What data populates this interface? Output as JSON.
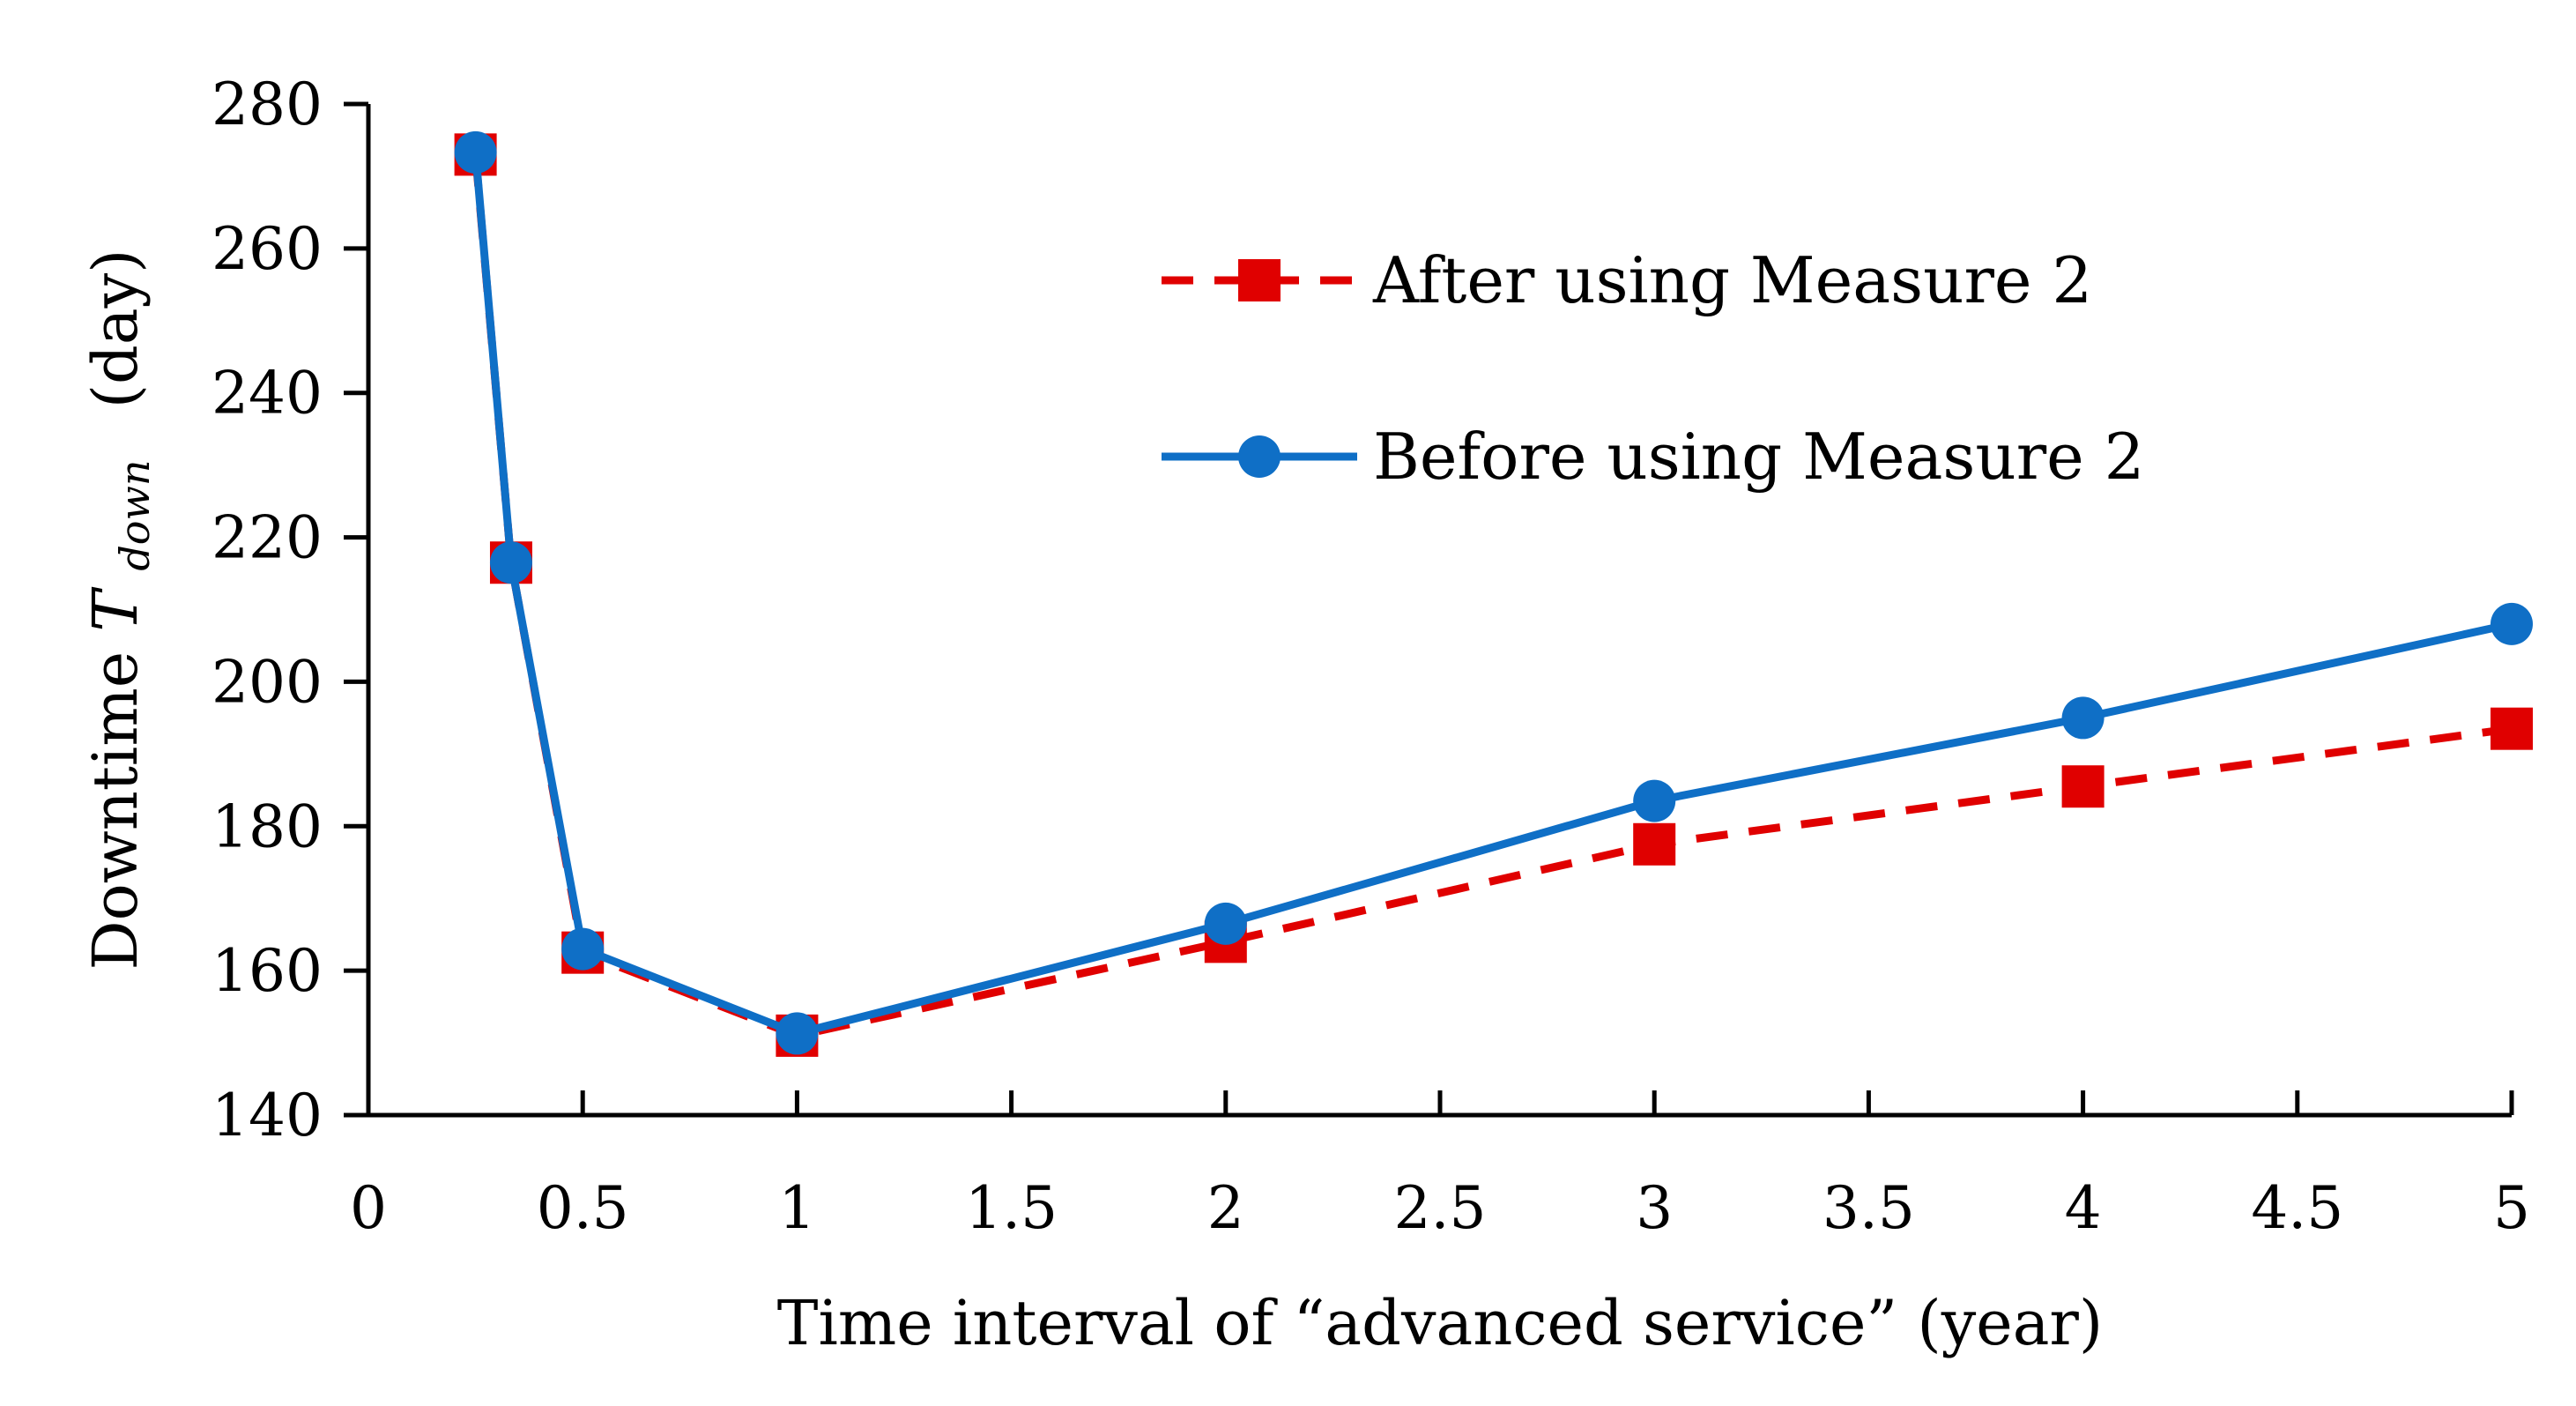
{
  "chart_data": {
    "type": "line",
    "title": "",
    "xlabel": "Time interval of “advanced service” (year)",
    "ylabel": {
      "prefix": "Downtime ",
      "symbol": "T",
      "subscript": "down",
      "unit": "(day)"
    },
    "xlim": [
      0,
      5
    ],
    "ylim": [
      140,
      280
    ],
    "x_ticks": [
      0,
      0.5,
      1,
      1.5,
      2,
      2.5,
      3,
      3.5,
      4,
      4.5,
      5
    ],
    "x_tick_labels": [
      "0",
      "0.5",
      "1",
      "1.5",
      "2",
      "2.5",
      "3",
      "3.5",
      "4",
      "4.5",
      "5"
    ],
    "y_ticks": [
      140,
      160,
      180,
      200,
      220,
      240,
      260,
      280
    ],
    "y_tick_labels": [
      "140",
      "160",
      "180",
      "200",
      "220",
      "240",
      "260",
      "280"
    ],
    "grid": false,
    "legend_position": "top-right",
    "series": [
      {
        "name": "After using Measure 2",
        "marker": "square",
        "line_style": "dashed",
        "color": "#e00000",
        "x": [
          0.25,
          0.333,
          0.5,
          1,
          2,
          3,
          4,
          5
        ],
        "values": [
          273,
          216.5,
          162.5,
          151,
          164,
          177.5,
          185.5,
          193.5
        ]
      },
      {
        "name": "Before using Measure 2",
        "marker": "circle",
        "line_style": "solid",
        "color": "#0f6fc6",
        "x": [
          0.25,
          0.333,
          0.5,
          1,
          2,
          3,
          4,
          5
        ],
        "values": [
          273.3,
          216.5,
          163,
          151.3,
          166.5,
          183.5,
          195,
          208
        ]
      }
    ]
  }
}
